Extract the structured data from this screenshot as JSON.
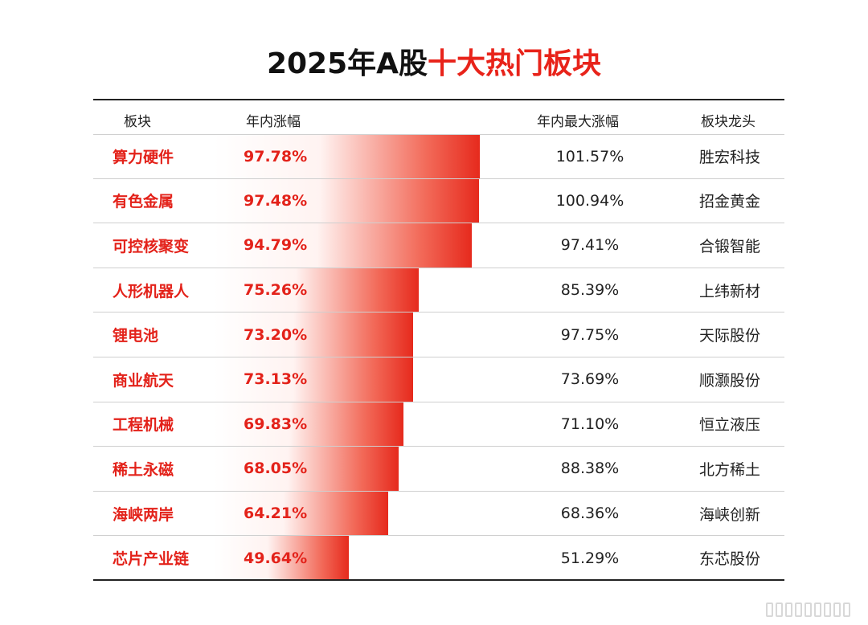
{
  "title": {
    "part1": "2025年A股",
    "part2": "十大热门板块"
  },
  "colors": {
    "accent": "#e3221a",
    "text": "#222222"
  },
  "headers": {
    "sector": "板块",
    "gain": "年内涨幅",
    "max_gain": "年内最大涨幅",
    "leader": "板块龙头"
  },
  "chart_data": {
    "type": "table",
    "bar_column": "gain",
    "rows": [
      {
        "sector": "算力硬件",
        "gain_label": "97.78%",
        "gain": 97.78,
        "max_label": "101.57%",
        "leader": "胜宏科技"
      },
      {
        "sector": "有色金属",
        "gain_label": "97.48%",
        "gain": 97.48,
        "max_label": "100.94%",
        "leader": "招金黄金"
      },
      {
        "sector": "可控核聚变",
        "gain_label": "94.79%",
        "gain": 94.79,
        "max_label": "97.41%",
        "leader": "合锻智能"
      },
      {
        "sector": "人形机器人",
        "gain_label": "75.26%",
        "gain": 75.26,
        "max_label": "85.39%",
        "leader": "上纬新材"
      },
      {
        "sector": "锂电池",
        "gain_label": "73.20%",
        "gain": 73.2,
        "max_label": "97.75%",
        "leader": "天际股份"
      },
      {
        "sector": "商业航天",
        "gain_label": "73.13%",
        "gain": 73.13,
        "max_label": "73.69%",
        "leader": "顺灏股份"
      },
      {
        "sector": "工程机械",
        "gain_label": "69.83%",
        "gain": 69.83,
        "max_label": "71.10%",
        "leader": "恒立液压"
      },
      {
        "sector": "稀土永磁",
        "gain_label": "68.05%",
        "gain": 68.05,
        "max_label": "88.38%",
        "leader": "北方稀土"
      },
      {
        "sector": "海峡两岸",
        "gain_label": "64.21%",
        "gain": 64.21,
        "max_label": "68.36%",
        "leader": "海峡创新"
      },
      {
        "sector": "芯片产业链",
        "gain_label": "49.64%",
        "gain": 49.64,
        "max_label": "51.29%",
        "leader": "东芯股份"
      }
    ]
  }
}
